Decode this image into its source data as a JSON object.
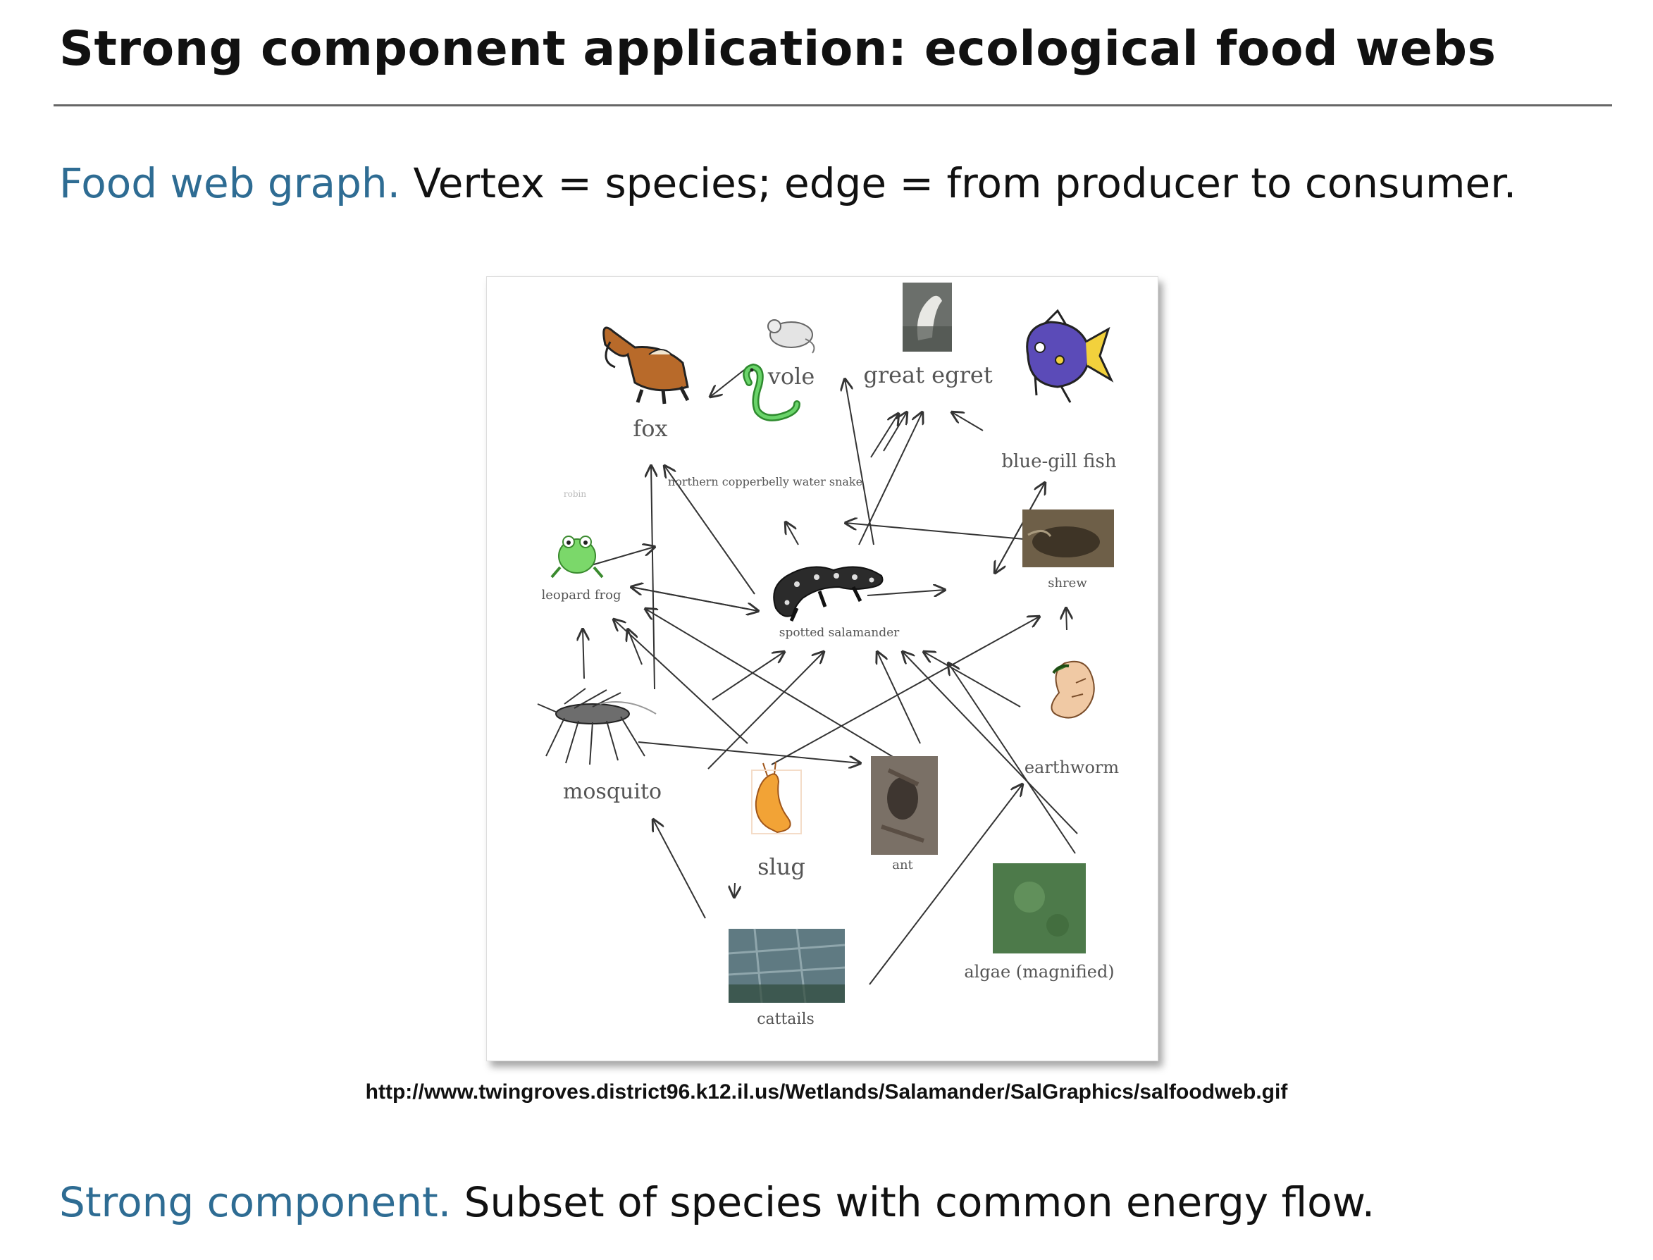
{
  "slide": {
    "title": "Strong component application:  ecological food webs",
    "line1_term": "Food web graph.",
    "line1_text": " Vertex = species; edge = from producer to consumer.",
    "source_url": "http://www.twingroves.district96.k12.il.us/Wetlands/Salamander/SalGraphics/salfoodweb.gif",
    "line2_term": "Strong component.",
    "line2_text": "  Subset of species with common energy flow."
  },
  "colors": {
    "accent": "#2e6c93",
    "arrow": "#333333",
    "label": "#555555"
  },
  "food_web": {
    "nodes": [
      {
        "id": "fox",
        "label": "fox",
        "icon": "fox-icon"
      },
      {
        "id": "vole",
        "label": "vole",
        "icon": "vole-icon"
      },
      {
        "id": "egret",
        "label": "great egret",
        "icon": "egret-photo"
      },
      {
        "id": "bluegill",
        "label": "blue-gill fish",
        "icon": "fish-icon"
      },
      {
        "id": "snake",
        "label": "northern copperbelly water snake",
        "icon": "snake-icon"
      },
      {
        "id": "robin",
        "label": "robin",
        "icon": ""
      },
      {
        "id": "frog",
        "label": "leopard frog",
        "icon": "frog-icon"
      },
      {
        "id": "salamander",
        "label": "spotted salamander",
        "icon": "salamander-icon"
      },
      {
        "id": "shrew",
        "label": "shrew",
        "icon": "shrew-photo"
      },
      {
        "id": "mosquito",
        "label": "mosquito",
        "icon": "mosquito-icon"
      },
      {
        "id": "slug",
        "label": "slug",
        "icon": "slug-icon"
      },
      {
        "id": "ant",
        "label": "ant",
        "icon": "ant-photo"
      },
      {
        "id": "earthworm",
        "label": "earthworm",
        "icon": "earthworm-icon"
      },
      {
        "id": "cattails",
        "label": "cattails",
        "icon": "cattails-photo"
      },
      {
        "id": "algae",
        "label": "algae (magnified)",
        "icon": "algae-photo"
      }
    ]
  }
}
